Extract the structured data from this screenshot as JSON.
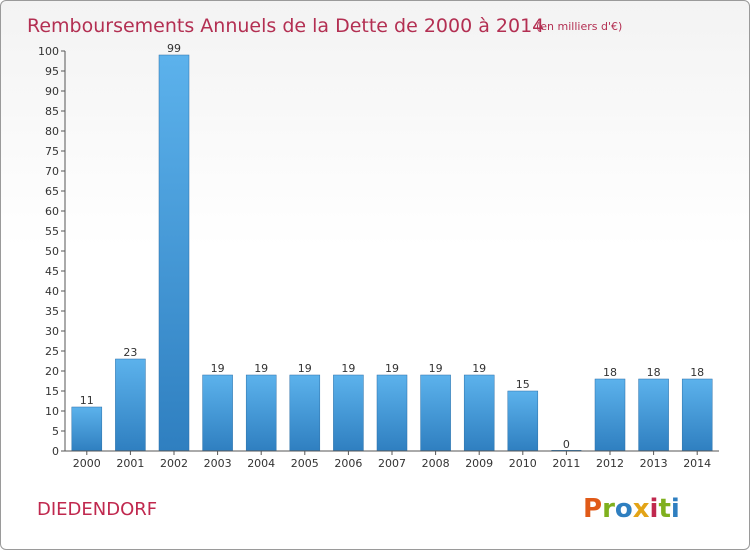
{
  "chart_data": {
    "type": "bar",
    "title": "Remboursements Annuels de la Dette de 2000 à 2014",
    "subtitle": "(en milliers d'€)",
    "categories": [
      "2000",
      "2001",
      "2002",
      "2003",
      "2004",
      "2005",
      "2006",
      "2007",
      "2008",
      "2009",
      "2010",
      "2011",
      "2012",
      "2013",
      "2014"
    ],
    "values": [
      11,
      23,
      99,
      19,
      19,
      19,
      19,
      19,
      19,
      19,
      15,
      0,
      18,
      18,
      18
    ],
    "value_labels": [
      "11",
      "23",
      "99",
      "19",
      "19",
      "19",
      "19",
      "19",
      "19",
      "19",
      "15",
      "0",
      "18",
      "18",
      "18"
    ],
    "ylim": [
      0,
      100
    ],
    "yticks": [
      0,
      5,
      10,
      15,
      20,
      25,
      30,
      35,
      40,
      45,
      50,
      55,
      60,
      65,
      70,
      75,
      80,
      85,
      90,
      95,
      100
    ],
    "grid": false,
    "bar_color_top": "#5cb2ec",
    "bar_color_bottom": "#2f7fc0",
    "bar_border_color": "#2a6fa8"
  },
  "commune": "DIEDENDORF",
  "logo": {
    "letters": [
      "P",
      "r",
      "o",
      "x",
      "i",
      "t",
      "i"
    ],
    "colors": [
      "#e05a18",
      "#7fb01e",
      "#2f7fc0",
      "#e3a417",
      "#c0284e",
      "#7fb01e",
      "#2f7fc0"
    ]
  }
}
